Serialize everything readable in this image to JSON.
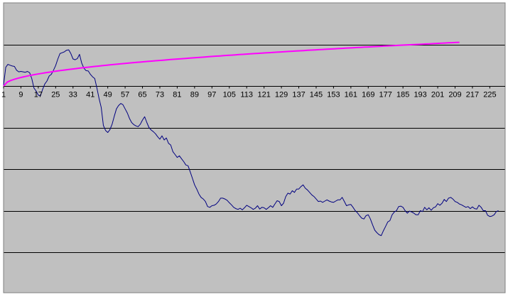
{
  "chart_data": {
    "type": "line",
    "title": "",
    "xlabel": "",
    "ylabel": "",
    "legend": "none",
    "grid": {
      "horizontal": true,
      "vertical": false
    },
    "x_tick_labels": [
      "1",
      "9",
      "17",
      "25",
      "33",
      "41",
      "49",
      "57",
      "65",
      "73",
      "81",
      "89",
      "97",
      "105",
      "113",
      "121",
      "129",
      "137",
      "145",
      "153",
      "161",
      "169",
      "177",
      "185",
      "193",
      "201",
      "209",
      "217",
      "225"
    ],
    "x_range": [
      1,
      228
    ],
    "y_range": [
      -4,
      2
    ],
    "y_gridlines": [
      1,
      0,
      -1,
      -2,
      -3,
      -4
    ],
    "series": [
      {
        "color": "#000080",
        "x_start": 1,
        "values": [
          0.02,
          0.45,
          0.52,
          0.5,
          0.48,
          0.47,
          0.38,
          0.34,
          0.35,
          0.34,
          0.33,
          0.35,
          0.32,
          0.18,
          -0.05,
          -0.12,
          -0.22,
          -0.24,
          -0.08,
          0.05,
          0.12,
          0.24,
          0.28,
          0.38,
          0.49,
          0.65,
          0.78,
          0.8,
          0.82,
          0.86,
          0.87,
          0.78,
          0.65,
          0.63,
          0.66,
          0.76,
          0.55,
          0.43,
          0.37,
          0.36,
          0.28,
          0.22,
          0.18,
          -0.05,
          -0.3,
          -0.52,
          -0.95,
          -1.07,
          -1.12,
          -1.05,
          -0.92,
          -0.73,
          -0.55,
          -0.47,
          -0.42,
          -0.45,
          -0.55,
          -0.65,
          -0.78,
          -0.88,
          -0.93,
          -0.96,
          -0.98,
          -0.92,
          -0.82,
          -0.74,
          -0.88,
          -1.0,
          -1.06,
          -1.1,
          -1.15,
          -1.22,
          -1.28,
          -1.2,
          -1.3,
          -1.25,
          -1.38,
          -1.42,
          -1.58,
          -1.65,
          -1.72,
          -1.68,
          -1.75,
          -1.82,
          -1.9,
          -1.92,
          -2.07,
          -2.22,
          -2.38,
          -2.48,
          -2.6,
          -2.68,
          -2.72,
          -2.78,
          -2.9,
          -2.92,
          -2.88,
          -2.87,
          -2.84,
          -2.78,
          -2.7,
          -2.7,
          -2.72,
          -2.75,
          -2.81,
          -2.86,
          -2.92,
          -2.95,
          -2.97,
          -2.94,
          -2.98,
          -2.93,
          -2.87,
          -2.9,
          -2.93,
          -2.97,
          -2.94,
          -2.88,
          -2.96,
          -2.92,
          -2.93,
          -2.97,
          -2.93,
          -2.88,
          -2.92,
          -2.84,
          -2.76,
          -2.78,
          -2.88,
          -2.82,
          -2.66,
          -2.58,
          -2.6,
          -2.52,
          -2.56,
          -2.48,
          -2.48,
          -2.42,
          -2.38,
          -2.46,
          -2.5,
          -2.56,
          -2.62,
          -2.66,
          -2.72,
          -2.78,
          -2.77,
          -2.8,
          -2.77,
          -2.74,
          -2.77,
          -2.79,
          -2.8,
          -2.77,
          -2.74,
          -2.74,
          -2.68,
          -2.78,
          -2.88,
          -2.86,
          -2.85,
          -2.92,
          -3.0,
          -3.05,
          -3.12,
          -3.18,
          -3.2,
          -3.12,
          -3.1,
          -3.2,
          -3.34,
          -3.47,
          -3.53,
          -3.58,
          -3.6,
          -3.48,
          -3.38,
          -3.27,
          -3.24,
          -3.1,
          -3.03,
          -3.0,
          -2.9,
          -2.89,
          -2.92,
          -3.0,
          -3.06,
          -3.01,
          -3.03,
          -3.06,
          -3.1,
          -3.1,
          -3.0,
          -3.02,
          -2.92,
          -2.98,
          -2.93,
          -2.99,
          -2.93,
          -2.91,
          -2.83,
          -2.87,
          -2.82,
          -2.73,
          -2.78,
          -2.7,
          -2.68,
          -2.72,
          -2.78,
          -2.8,
          -2.84,
          -2.86,
          -2.89,
          -2.92,
          -2.9,
          -2.95,
          -2.91,
          -2.95,
          -2.96,
          -2.87,
          -2.92,
          -3.0,
          -3.0,
          -3.11,
          -3.14,
          -3.13,
          -3.1,
          -3.02,
          -3.0
        ]
      },
      {
        "color": "#ff00ff",
        "x_start": 1,
        "x_end": 211,
        "y_start": 0.0,
        "y_end": 1.05,
        "shape": "concave-increasing"
      }
    ]
  }
}
